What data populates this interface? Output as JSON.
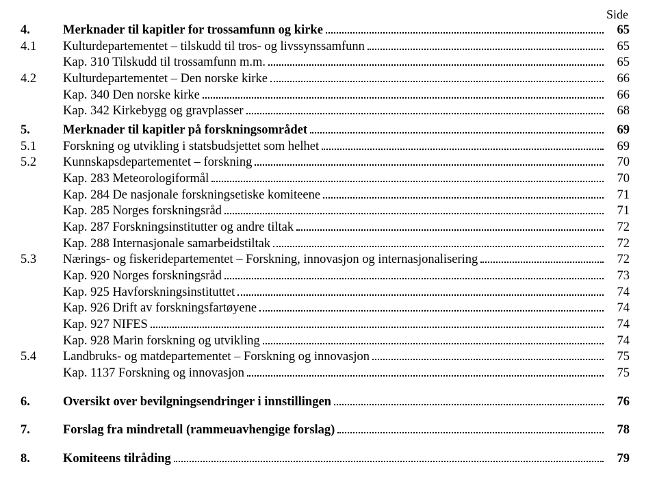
{
  "sideLabel": "Side",
  "entries": [
    {
      "type": "row",
      "num": "4.",
      "text": "Merknader til kapitler for trossamfunn og kirke",
      "page": "65",
      "bold": true
    },
    {
      "type": "row",
      "num": "4.1",
      "text": "Kulturdepartementet – tilskudd til tros- og livssynssamfunn",
      "page": "65"
    },
    {
      "type": "sub",
      "text": "Kap. 310 Tilskudd til trossamfunn m.m.",
      "page": "65"
    },
    {
      "type": "row",
      "num": "4.2",
      "text": "Kulturdepartementet – Den norske kirke",
      "page": "66"
    },
    {
      "type": "sub",
      "text": "Kap. 340 Den norske kirke",
      "page": "66"
    },
    {
      "type": "sub",
      "text": "Kap. 342 Kirkebygg og gravplasser",
      "page": "68"
    },
    {
      "type": "gap-small"
    },
    {
      "type": "row",
      "num": "5.",
      "text": "Merknader til kapitler på forskningsområdet",
      "page": "69",
      "bold": true
    },
    {
      "type": "row",
      "num": "5.1",
      "text": "Forskning og utvikling i statsbudsjettet som helhet",
      "page": "69"
    },
    {
      "type": "row",
      "num": "5.2",
      "text": "Kunnskapsdepartementet – forskning",
      "page": "70"
    },
    {
      "type": "sub",
      "text": "Kap. 283 Meteorologiformål",
      "page": "70"
    },
    {
      "type": "sub",
      "text": "Kap. 284 De nasjonale forskningsetiske komiteene",
      "page": "71"
    },
    {
      "type": "sub",
      "text": "Kap. 285 Norges forskningsråd",
      "page": "71"
    },
    {
      "type": "sub",
      "text": "Kap. 287 Forskningsinstitutter og andre tiltak",
      "page": "72"
    },
    {
      "type": "sub",
      "text": "Kap. 288 Internasjonale samarbeidstiltak",
      "page": "72"
    },
    {
      "type": "row",
      "num": "5.3",
      "text": "Nærings- og fiskeridepartementet – Forskning, innovasjon og internasjonalisering",
      "page": "72"
    },
    {
      "type": "sub",
      "text": "Kap. 920 Norges forskningsråd",
      "page": "73"
    },
    {
      "type": "sub",
      "text": "Kap. 925 Havforskningsinstituttet",
      "page": "74"
    },
    {
      "type": "sub",
      "text": "Kap. 926 Drift av forskningsfartøyene",
      "page": "74"
    },
    {
      "type": "sub",
      "text": "Kap. 927 NIFES",
      "page": "74"
    },
    {
      "type": "sub",
      "text": "Kap. 928 Marin forskning og utvikling",
      "page": "74"
    },
    {
      "type": "row",
      "num": "5.4",
      "text": "Landbruks- og matdepartementet – Forskning og innovasjon",
      "page": "75"
    },
    {
      "type": "sub",
      "text": "Kap. 1137 Forskning og innovasjon",
      "page": "75"
    },
    {
      "type": "gap"
    },
    {
      "type": "row",
      "num": "6.",
      "text": "Oversikt over bevilgningsendringer i innstillingen",
      "page": "76",
      "bold": true
    },
    {
      "type": "gap"
    },
    {
      "type": "row",
      "num": "7.",
      "text": "Forslag fra mindretall (rammeuavhengige forslag)",
      "page": "78",
      "bold": true
    },
    {
      "type": "gap"
    },
    {
      "type": "row",
      "num": "8.",
      "text": "Komiteens tilråding",
      "page": "79",
      "bold": true
    }
  ]
}
